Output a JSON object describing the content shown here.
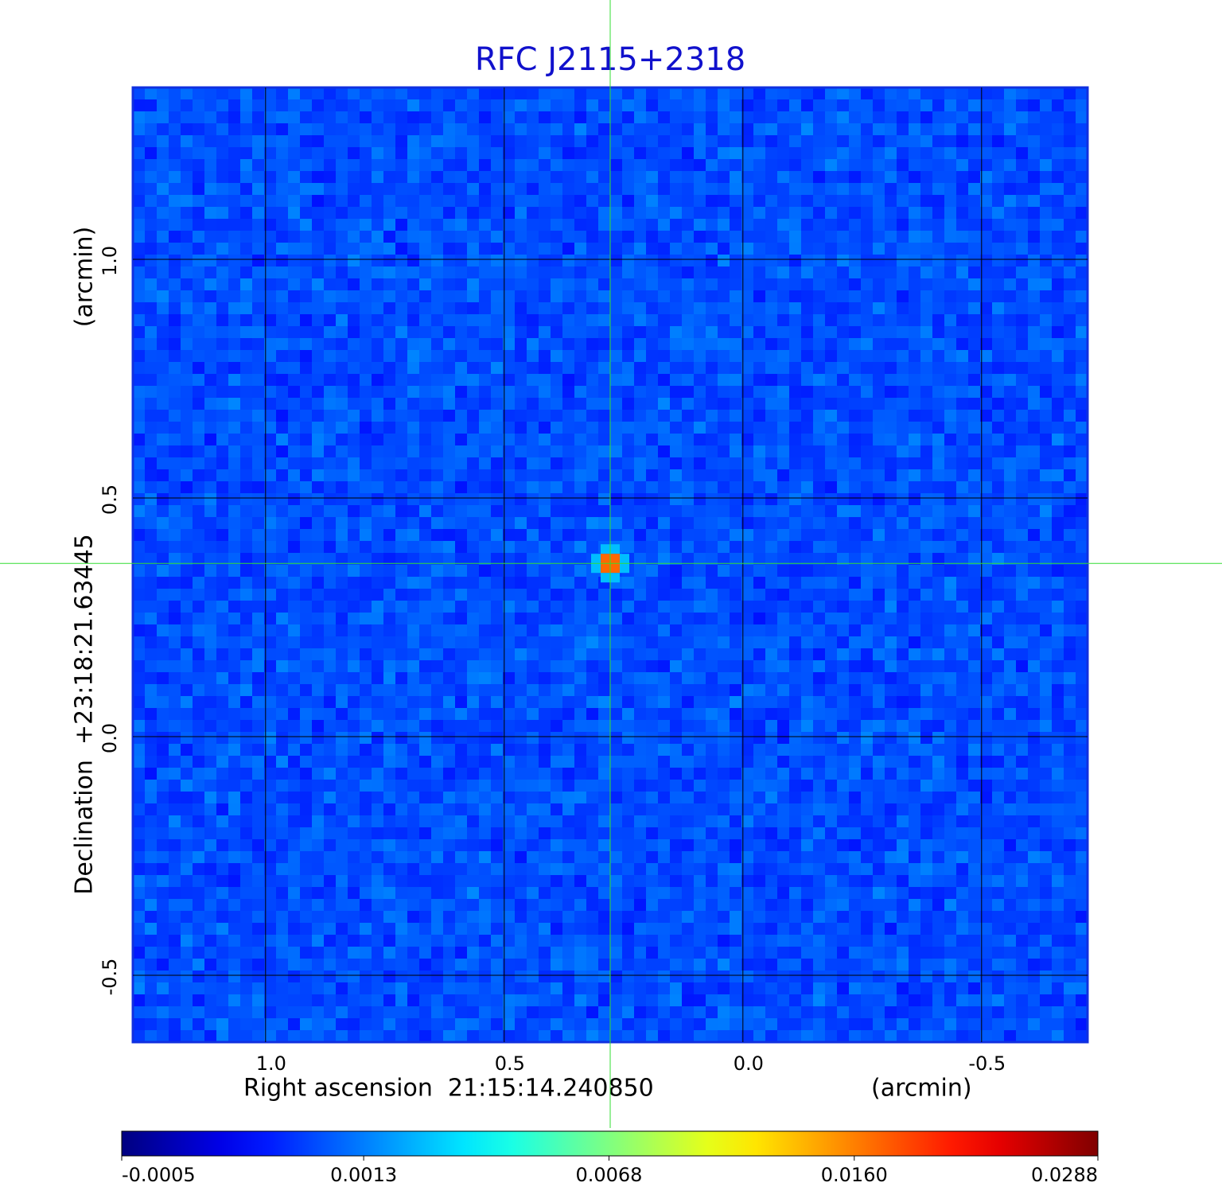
{
  "chart_data": {
    "type": "image",
    "title": "RFC J2115+2318",
    "title_color": "#1111cc",
    "xlabel": "Right ascension  21:15:14.240850",
    "xunit": "(arcmin)",
    "ylabel": "Declination  +23:18:21.63445",
    "yunit": "(arcmin)",
    "xlim": [
      1.278,
      -0.722
    ],
    "ylim": [
      -0.64,
      1.36
    ],
    "xticks": [
      {
        "value": 1,
        "label": "1.0"
      },
      0.5,
      {
        "value": 0,
        "label": "0.0"
      },
      -0.5
    ],
    "yticks": [
      -0.5,
      {
        "value": 0,
        "label": "0.0"
      },
      0.5,
      {
        "value": 1,
        "label": "1.0"
      }
    ],
    "grid": true,
    "crosshair": {
      "x": 0.278,
      "y": 0.363,
      "color": "#33dd33"
    },
    "colorbar": {
      "colormap": "jet",
      "scale": "sqrt",
      "lim": [
        -0.0005,
        0.0288
      ],
      "ticks": [
        -0.0005,
        0.0013,
        0.0068,
        {
          "value": 0.016,
          "label": "0.0160"
        },
        0.0288
      ]
    }
  }
}
